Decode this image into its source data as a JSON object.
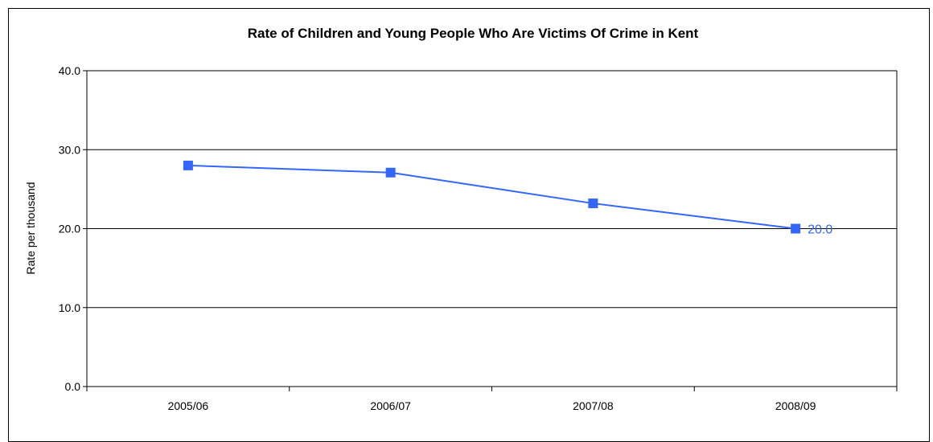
{
  "chart_data": {
    "type": "line",
    "title": "Rate of Children and Young People Who Are Victims Of Crime in Kent",
    "xlabel": "",
    "ylabel": "Rate per thousand",
    "categories": [
      "2005/06",
      "2006/07",
      "2007/08",
      "2008/09"
    ],
    "series": [
      {
        "values": [
          28.0,
          27.1,
          23.2,
          20.0
        ],
        "color": "#3366ff"
      }
    ],
    "data_labels": [
      {
        "category": "2008/09",
        "text": "20.0"
      }
    ],
    "ylim": [
      0,
      40
    ],
    "yticks": [
      "0.0",
      "10.0",
      "20.0",
      "30.0",
      "40.0"
    ],
    "grid": true,
    "legend": "none"
  }
}
